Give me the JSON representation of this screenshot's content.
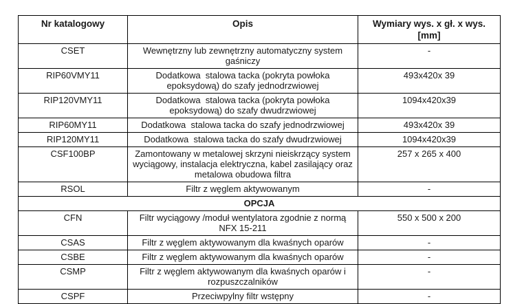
{
  "page": {
    "background_color": "#ffffff",
    "text_color": "#1a1a1a",
    "border_color": "#000000"
  },
  "table": {
    "header": {
      "col1": "Nr katalogowy",
      "col2": "Opis",
      "col3_line1": "Wymiary wys. x gł. x wys.",
      "col3_line2": "[mm]"
    },
    "sections": [
      {
        "title": "",
        "rows": [
          {
            "code": "CSET",
            "description": "Wewnętrzny lub zewnętrzny automatyczny system gaśniczy",
            "dimensions": "-"
          },
          {
            "code": "RIP60VMY11",
            "description": "Dodatkowa  stalowa tacka (pokryta powłoka epoksydową) do szafy jednodrzwiowej",
            "dimensions": "493x420x 39"
          },
          {
            "code": "RIP120VMY11",
            "description": "Dodatkowa  stalowa tacka (pokryta powłoka epoksydową) do szafy dwudrzwiowej",
            "dimensions": "1094x420x39"
          },
          {
            "code": "RIP60MY11",
            "description": "Dodatkowa  stalowa tacka do szafy jednodrzwiowej",
            "dimensions": "493x420x 39"
          },
          {
            "code": "RIP120MY11",
            "description": "Dodatkowa  stalowa tacka do szafy dwudrzwiowej",
            "dimensions": "1094x420x39"
          },
          {
            "code": "CSF100BP",
            "description": "Zamontowany w metalowej skrzyni nieiskrzący system wyciągowy, instalacja elektryczna, kabel zasilający oraz metalowa obudowa filtra",
            "dimensions": "257 x 265 x 400"
          },
          {
            "code": "RSOL",
            "description": "Filtr z węglem aktywowanym",
            "dimensions": "-"
          }
        ]
      },
      {
        "title": "OPCJA",
        "rows": [
          {
            "code": "CFN",
            "description": "Filtr wyciągowy /moduł wentylatora zgodnie z normą NFX 15-211",
            "dimensions": "550 x 500 x 200"
          },
          {
            "code": "CSAS",
            "description": "Filtr z węglem aktywowanym dla kwaśnych oparów",
            "dimensions": "-"
          },
          {
            "code": "CSBE",
            "description": "Filtr z węglem aktywowanym dla kwaśnych oparów",
            "dimensions": "-"
          },
          {
            "code": "CSMP",
            "description": "Filtr z węglem aktywowanym dla kwaśnych oparów i rozpuszczalników",
            "dimensions": "-"
          },
          {
            "code": "CSPF",
            "description": "Przeciwpylny filtr wstępny",
            "dimensions": "-"
          }
        ]
      }
    ]
  }
}
